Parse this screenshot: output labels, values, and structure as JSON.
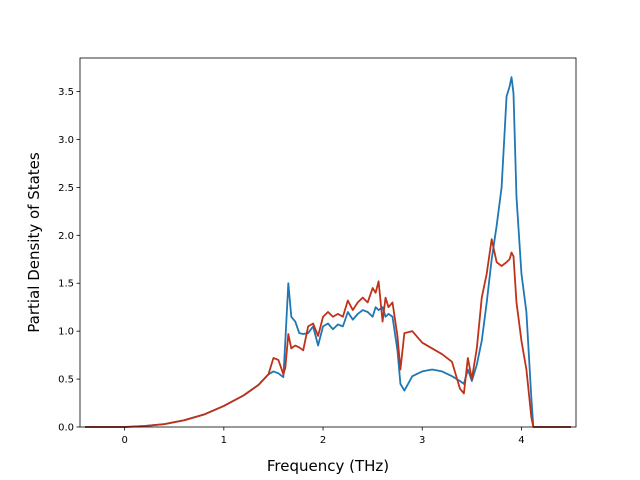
{
  "chart_data": {
    "type": "line",
    "title": "",
    "xlabel": "Frequency (THz)",
    "ylabel": "Partial Density of States",
    "xlim": [
      -0.45,
      4.55
    ],
    "ylim": [
      0.0,
      3.85
    ],
    "xticks": [
      0,
      1,
      2,
      3,
      4
    ],
    "yticks": [
      0.0,
      0.5,
      1.0,
      1.5,
      2.0,
      2.5,
      3.0,
      3.5
    ],
    "xtick_labels": [
      "0",
      "1",
      "2",
      "3",
      "4"
    ],
    "ytick_labels": [
      "0.0",
      "0.5",
      "1.0",
      "1.5",
      "2.0",
      "2.5",
      "3.0",
      "3.5"
    ],
    "grid": false,
    "legend": null,
    "series": [
      {
        "color": "#1f77b4",
        "x": [
          -0.4,
          0.0,
          0.2,
          0.4,
          0.6,
          0.8,
          1.0,
          1.2,
          1.35,
          1.45,
          1.5,
          1.55,
          1.6,
          1.62,
          1.65,
          1.68,
          1.72,
          1.76,
          1.8,
          1.85,
          1.9,
          1.95,
          2.0,
          2.05,
          2.1,
          2.15,
          2.2,
          2.25,
          2.3,
          2.35,
          2.4,
          2.45,
          2.5,
          2.53,
          2.56,
          2.6,
          2.63,
          2.66,
          2.7,
          2.75,
          2.78,
          2.82,
          2.9,
          3.0,
          3.1,
          3.2,
          3.3,
          3.38,
          3.42,
          3.46,
          3.5,
          3.55,
          3.6,
          3.65,
          3.7,
          3.75,
          3.8,
          3.85,
          3.88,
          3.9,
          3.92,
          3.95,
          4.0,
          4.05,
          4.1,
          4.12,
          4.15,
          4.3,
          4.5
        ],
        "y": [
          0.0,
          0.0,
          0.01,
          0.03,
          0.07,
          0.13,
          0.22,
          0.33,
          0.44,
          0.55,
          0.58,
          0.56,
          0.52,
          0.9,
          1.5,
          1.15,
          1.1,
          0.98,
          0.97,
          0.98,
          1.05,
          0.85,
          1.05,
          1.08,
          1.02,
          1.07,
          1.05,
          1.2,
          1.12,
          1.18,
          1.22,
          1.2,
          1.15,
          1.25,
          1.22,
          1.25,
          1.15,
          1.18,
          1.15,
          0.8,
          0.45,
          0.38,
          0.53,
          0.58,
          0.6,
          0.58,
          0.53,
          0.48,
          0.45,
          0.6,
          0.48,
          0.65,
          0.9,
          1.3,
          1.75,
          2.1,
          2.5,
          3.45,
          3.55,
          3.65,
          3.48,
          2.4,
          1.6,
          1.2,
          0.3,
          0.0,
          0.0,
          0.0,
          0.0
        ]
      },
      {
        "color": "#c0311a",
        "x": [
          -0.4,
          0.0,
          0.2,
          0.4,
          0.6,
          0.8,
          1.0,
          1.2,
          1.35,
          1.45,
          1.5,
          1.55,
          1.6,
          1.62,
          1.65,
          1.68,
          1.72,
          1.76,
          1.8,
          1.85,
          1.9,
          1.95,
          2.0,
          2.05,
          2.1,
          2.15,
          2.2,
          2.25,
          2.3,
          2.35,
          2.4,
          2.45,
          2.5,
          2.53,
          2.56,
          2.6,
          2.63,
          2.66,
          2.7,
          2.75,
          2.78,
          2.82,
          2.9,
          3.0,
          3.1,
          3.2,
          3.3,
          3.38,
          3.42,
          3.46,
          3.5,
          3.55,
          3.6,
          3.65,
          3.7,
          3.75,
          3.8,
          3.85,
          3.88,
          3.9,
          3.92,
          3.95,
          4.0,
          4.05,
          4.1,
          4.12,
          4.15,
          4.3,
          4.5
        ],
        "y": [
          0.0,
          0.0,
          0.01,
          0.03,
          0.07,
          0.13,
          0.22,
          0.33,
          0.44,
          0.55,
          0.72,
          0.7,
          0.55,
          0.62,
          0.97,
          0.82,
          0.85,
          0.83,
          0.8,
          1.05,
          1.08,
          0.95,
          1.15,
          1.2,
          1.15,
          1.18,
          1.15,
          1.32,
          1.22,
          1.3,
          1.35,
          1.3,
          1.45,
          1.4,
          1.52,
          1.1,
          1.35,
          1.25,
          1.3,
          0.95,
          0.6,
          0.98,
          1.0,
          0.88,
          0.82,
          0.76,
          0.68,
          0.4,
          0.35,
          0.72,
          0.5,
          0.82,
          1.35,
          1.6,
          1.96,
          1.72,
          1.68,
          1.72,
          1.75,
          1.82,
          1.78,
          1.3,
          0.9,
          0.6,
          0.1,
          0.0,
          0.0,
          0.0,
          0.0
        ]
      }
    ]
  }
}
